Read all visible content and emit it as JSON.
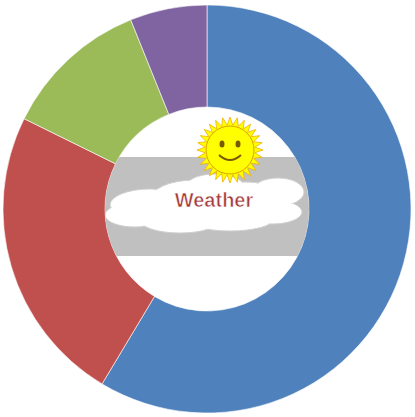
{
  "chart_data": {
    "type": "donut",
    "title": "Weather",
    "categories": [
      null,
      null,
      null,
      null
    ],
    "values": [
      58.6,
      23.7,
      11.6,
      6.1
    ],
    "colors": [
      "#4f81bd",
      "#c0504d",
      "#9bbb59",
      "#8064a2"
    ]
  }
}
